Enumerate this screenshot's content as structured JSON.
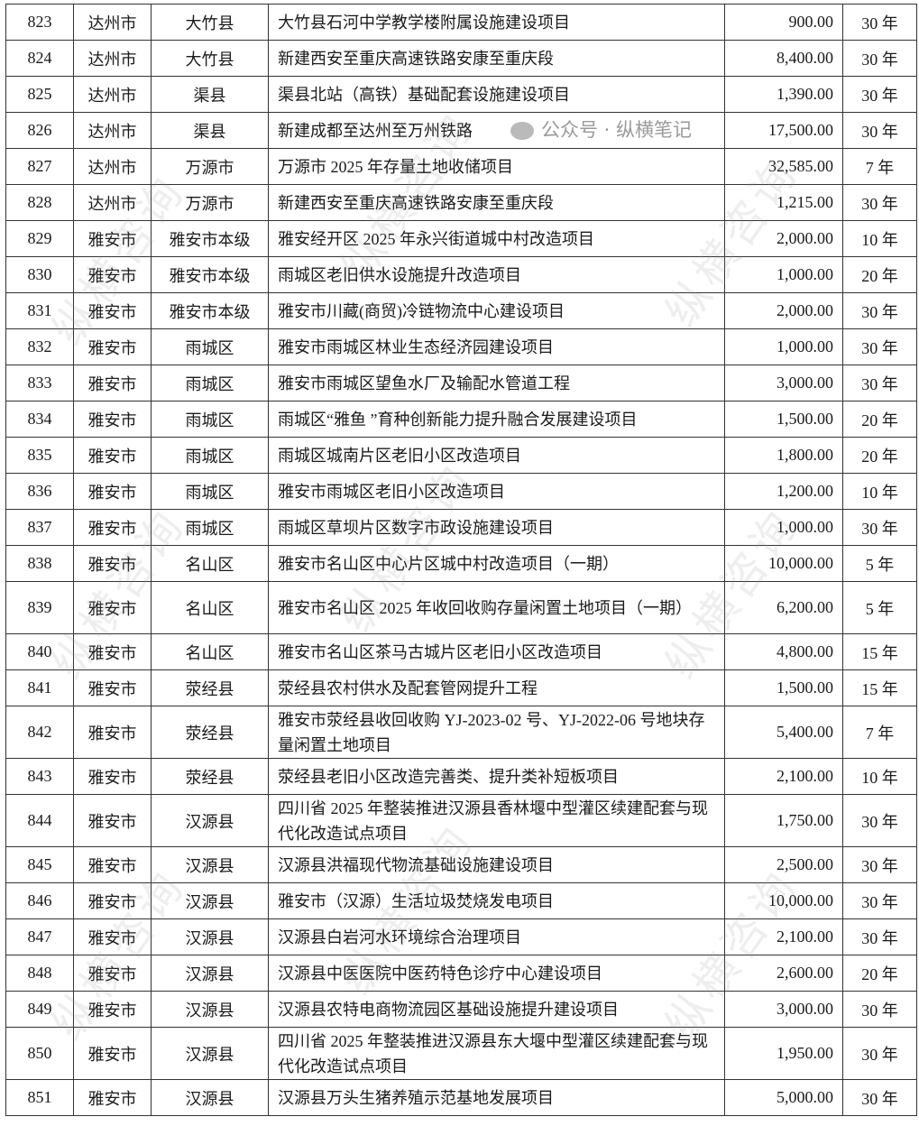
{
  "watermark": "纵横咨询",
  "footer_mark": "公众号 · 纵横笔记",
  "rows": [
    {
      "no": "823",
      "city": "达州市",
      "county": "大竹县",
      "name": "大竹县石河中学教学楼附属设施建设项目",
      "amount": "900.00",
      "term": "30 年"
    },
    {
      "no": "824",
      "city": "达州市",
      "county": "大竹县",
      "name": "新建西安至重庆高速铁路安康至重庆段",
      "amount": "8,400.00",
      "term": "30 年"
    },
    {
      "no": "825",
      "city": "达州市",
      "county": "渠县",
      "name": "渠县北站（高铁）基础配套设施建设项目",
      "amount": "1,390.00",
      "term": "30 年"
    },
    {
      "no": "826",
      "city": "达州市",
      "county": "渠县",
      "name": "新建成都至达州至万州铁路",
      "amount": "17,500.00",
      "term": "30 年"
    },
    {
      "no": "827",
      "city": "达州市",
      "county": "万源市",
      "name": "万源市 2025 年存量土地收储项目",
      "amount": "32,585.00",
      "term": "7 年"
    },
    {
      "no": "828",
      "city": "达州市",
      "county": "万源市",
      "name": "新建西安至重庆高速铁路安康至重庆段",
      "amount": "1,215.00",
      "term": "30 年"
    },
    {
      "no": "829",
      "city": "雅安市",
      "county": "雅安市本级",
      "name": "雅安经开区 2025 年永兴街道城中村改造项目",
      "amount": "2,000.00",
      "term": "10 年"
    },
    {
      "no": "830",
      "city": "雅安市",
      "county": "雅安市本级",
      "name": "雨城区老旧供水设施提升改造项目",
      "amount": "1,000.00",
      "term": "20 年"
    },
    {
      "no": "831",
      "city": "雅安市",
      "county": "雅安市本级",
      "name": "雅安市川藏(商贸)冷链物流中心建设项目",
      "amount": "2,000.00",
      "term": "30 年"
    },
    {
      "no": "832",
      "city": "雅安市",
      "county": "雨城区",
      "name": "雅安市雨城区林业生态经济园建设项目",
      "amount": "1,000.00",
      "term": "30 年"
    },
    {
      "no": "833",
      "city": "雅安市",
      "county": "雨城区",
      "name": "雅安市雨城区望鱼水厂及输配水管道工程",
      "amount": "3,000.00",
      "term": "30 年"
    },
    {
      "no": "834",
      "city": "雅安市",
      "county": "雨城区",
      "name": "雨城区“雅鱼 ”育种创新能力提升融合发展建设项目",
      "amount": "1,500.00",
      "term": "20 年"
    },
    {
      "no": "835",
      "city": "雅安市",
      "county": "雨城区",
      "name": "雨城区城南片区老旧小区改造项目",
      "amount": "1,800.00",
      "term": "20 年"
    },
    {
      "no": "836",
      "city": "雅安市",
      "county": "雨城区",
      "name": "雅安市雨城区老旧小区改造项目",
      "amount": "1,200.00",
      "term": "10 年"
    },
    {
      "no": "837",
      "city": "雅安市",
      "county": "雨城区",
      "name": "雨城区草坝片区数字市政设施建设项目",
      "amount": "1,000.00",
      "term": "30 年"
    },
    {
      "no": "838",
      "city": "雅安市",
      "county": "名山区",
      "name": "雅安市名山区中心片区城中村改造项目（一期）",
      "amount": "10,000.00",
      "term": "5 年"
    },
    {
      "no": "839",
      "city": "雅安市",
      "county": "名山区",
      "name": "雅安市名山区 2025 年收回收购存量闲置土地项目（一期）",
      "amount": "6,200.00",
      "term": "5 年",
      "tall": true
    },
    {
      "no": "840",
      "city": "雅安市",
      "county": "名山区",
      "name": "雅安市名山区茶马古城片区老旧小区改造项目",
      "amount": "4,800.00",
      "term": "15 年"
    },
    {
      "no": "841",
      "city": "雅安市",
      "county": "荥经县",
      "name": "荥经县农村供水及配套管网提升工程",
      "amount": "1,500.00",
      "term": "15 年"
    },
    {
      "no": "842",
      "city": "雅安市",
      "county": "荥经县",
      "name": "雅安市荥经县收回收购 YJ-2023-02 号、YJ-2022-06 号地块存量闲置土地项目",
      "amount": "5,400.00",
      "term": "7 年",
      "tall": true
    },
    {
      "no": "843",
      "city": "雅安市",
      "county": "荥经县",
      "name": "荥经县老旧小区改造完善类、提升类补短板项目",
      "amount": "2,100.00",
      "term": "10 年"
    },
    {
      "no": "844",
      "city": "雅安市",
      "county": "汉源县",
      "name": "四川省 2025 年整装推进汉源县香林堰中型灌区续建配套与现代化改造试点项目",
      "amount": "1,750.00",
      "term": "30 年",
      "tall": true
    },
    {
      "no": "845",
      "city": "雅安市",
      "county": "汉源县",
      "name": "汉源县洪福现代物流基础设施建设项目",
      "amount": "2,500.00",
      "term": "30 年"
    },
    {
      "no": "846",
      "city": "雅安市",
      "county": "汉源县",
      "name": "雅安市（汉源）生活垃圾焚烧发电项目",
      "amount": "10,000.00",
      "term": "30 年"
    },
    {
      "no": "847",
      "city": "雅安市",
      "county": "汉源县",
      "name": "汉源县白岩河水环境综合治理项目",
      "amount": "2,100.00",
      "term": "30 年"
    },
    {
      "no": "848",
      "city": "雅安市",
      "county": "汉源县",
      "name": "汉源县中医医院中医药特色诊疗中心建设项目",
      "amount": "2,600.00",
      "term": "20 年"
    },
    {
      "no": "849",
      "city": "雅安市",
      "county": "汉源县",
      "name": "汉源县农特电商物流园区基础设施提升建设项目",
      "amount": "3,000.00",
      "term": "30 年"
    },
    {
      "no": "850",
      "city": "雅安市",
      "county": "汉源县",
      "name": "四川省 2025 年整装推进汉源县东大堰中型灌区续建配套与现代化改造试点项目",
      "amount": "1,950.00",
      "term": "30 年",
      "tall": true
    },
    {
      "no": "851",
      "city": "雅安市",
      "county": "汉源县",
      "name": "汉源县万头生猪养殖示范基地发展项目",
      "amount": "5,000.00",
      "term": "30 年"
    }
  ]
}
